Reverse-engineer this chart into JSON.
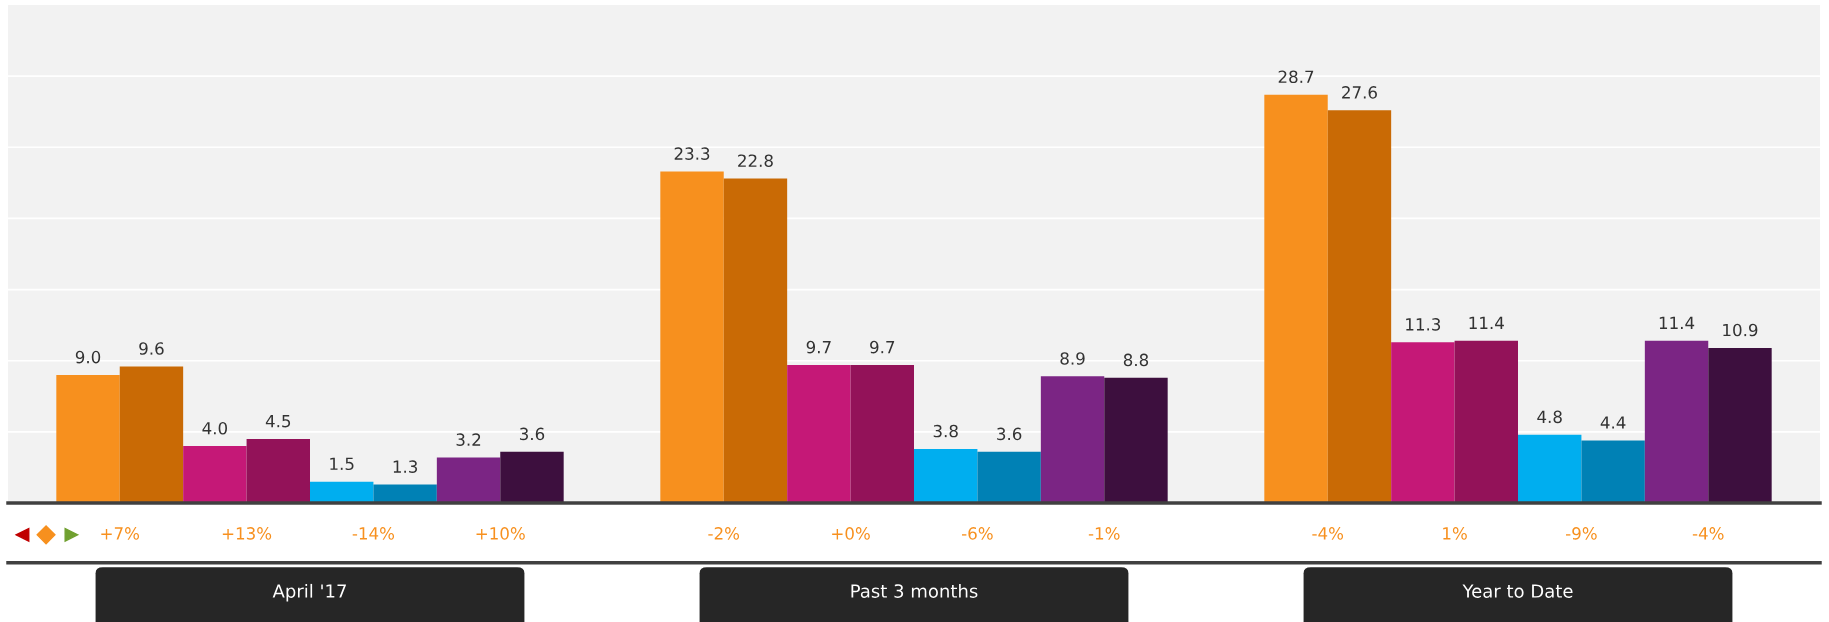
{
  "chart_data": {
    "type": "bar",
    "categories": [
      "April '17",
      "Past 3 months",
      "Year to Date"
    ],
    "series": [
      {
        "color": "#f7901e",
        "values": [
          9.0,
          23.3,
          28.7
        ],
        "value_labels": [
          "9.0",
          "23.3",
          "28.7"
        ]
      },
      {
        "color": "#c96a05",
        "values": [
          9.6,
          22.8,
          27.6
        ],
        "value_labels": [
          "9.6",
          "22.8",
          "27.6"
        ]
      },
      {
        "color": "#c51877",
        "values": [
          4.0,
          9.7,
          11.3
        ],
        "value_labels": [
          "4.0",
          "9.7",
          "11.3"
        ]
      },
      {
        "color": "#931259",
        "values": [
          4.5,
          9.7,
          11.4
        ],
        "value_labels": [
          "4.5",
          "9.7",
          "11.4"
        ]
      },
      {
        "color": "#00aeef",
        "values": [
          1.5,
          3.8,
          4.8
        ],
        "value_labels": [
          "1.5",
          "3.8",
          "4.8"
        ]
      },
      {
        "color": "#0081b5",
        "values": [
          1.3,
          3.6,
          4.4
        ],
        "value_labels": [
          "1.3",
          "3.6",
          "4.4"
        ]
      },
      {
        "color": "#7b2584",
        "values": [
          3.2,
          8.9,
          11.4
        ],
        "value_labels": [
          "3.2",
          "8.9",
          "11.4"
        ]
      },
      {
        "color": "#3d0f3e",
        "values": [
          3.6,
          8.8,
          10.9
        ],
        "value_labels": [
          "3.6",
          "8.8",
          "10.9"
        ]
      }
    ],
    "ylim": [
      0,
      35
    ],
    "yticks": [
      {
        "value": 0,
        "label": null
      },
      {
        "value": 5,
        "label": null
      },
      {
        "value": 10,
        "label": null
      },
      {
        "value": 15,
        "label": null
      },
      {
        "value": 20,
        "label": null
      },
      {
        "value": 25,
        "label": null
      },
      {
        "value": 30,
        "label": null
      }
    ],
    "tick_labels": "x",
    "grid": "y",
    "annotations": [
      "+7%",
      "+13%",
      "-14%",
      "+10%",
      "-2%",
      "+0%",
      "-6%",
      "-1%",
      "-4%",
      "1%",
      "-9%",
      "-4%"
    ]
  }
}
